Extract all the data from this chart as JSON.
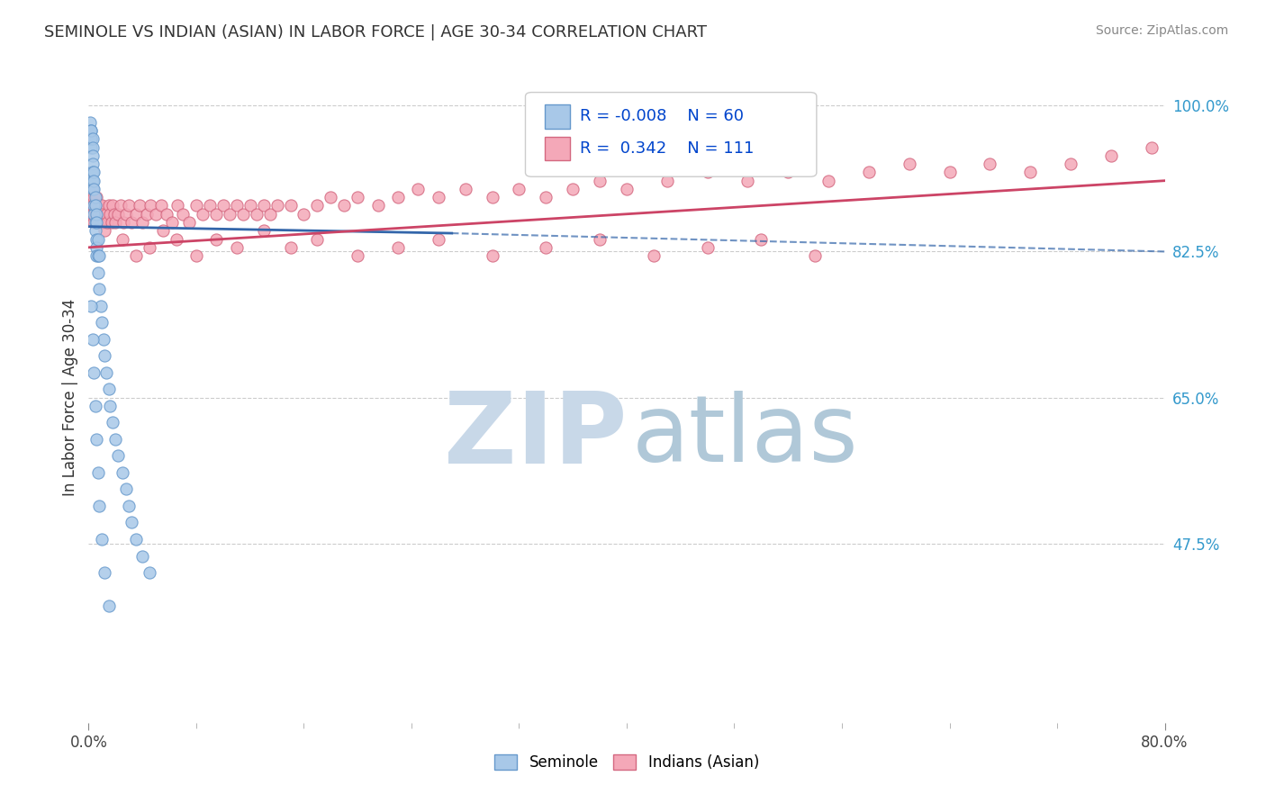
{
  "title": "SEMINOLE VS INDIAN (ASIAN) IN LABOR FORCE | AGE 30-34 CORRELATION CHART",
  "source": "Source: ZipAtlas.com",
  "ylabel": "In Labor Force | Age 30-34",
  "xlim": [
    0.0,
    0.8
  ],
  "ylim": [
    0.26,
    1.04
  ],
  "xticks": [
    0.0,
    0.8
  ],
  "xticklabels": [
    "0.0%",
    "80.0%"
  ],
  "ytick_right_values": [
    1.0,
    0.825,
    0.65,
    0.475
  ],
  "ytick_right_labels": [
    "100.0%",
    "82.5%",
    "65.0%",
    "47.5%"
  ],
  "r_seminole": "-0.008",
  "n_seminole": "60",
  "r_indian": "0.342",
  "n_indian": "111",
  "blue_color": "#a8c8e8",
  "pink_color": "#f4a8b8",
  "blue_edge_color": "#6699cc",
  "pink_edge_color": "#d46880",
  "blue_line_color": "#3366aa",
  "pink_line_color": "#cc4466",
  "watermark_zip_color": "#c8d8e8",
  "watermark_atlas_color": "#b0c8d8",
  "background_color": "#ffffff",
  "title_fontsize": 13,
  "seminole_x": [
    0.001,
    0.001,
    0.002,
    0.002,
    0.002,
    0.002,
    0.002,
    0.003,
    0.003,
    0.003,
    0.003,
    0.003,
    0.003,
    0.003,
    0.004,
    0.004,
    0.004,
    0.004,
    0.004,
    0.005,
    0.005,
    0.005,
    0.005,
    0.006,
    0.006,
    0.006,
    0.006,
    0.006,
    0.007,
    0.007,
    0.007,
    0.008,
    0.008,
    0.009,
    0.01,
    0.011,
    0.012,
    0.013,
    0.015,
    0.016,
    0.018,
    0.02,
    0.022,
    0.025,
    0.028,
    0.03,
    0.032,
    0.035,
    0.04,
    0.045,
    0.002,
    0.003,
    0.004,
    0.005,
    0.006,
    0.007,
    0.008,
    0.01,
    0.012,
    0.015
  ],
  "seminole_y": [
    0.97,
    0.98,
    0.97,
    0.96,
    0.95,
    0.96,
    0.97,
    0.96,
    0.95,
    0.94,
    0.93,
    0.92,
    0.91,
    0.9,
    0.92,
    0.91,
    0.9,
    0.88,
    0.87,
    0.89,
    0.88,
    0.86,
    0.85,
    0.87,
    0.86,
    0.84,
    0.83,
    0.82,
    0.84,
    0.82,
    0.8,
    0.82,
    0.78,
    0.76,
    0.74,
    0.72,
    0.7,
    0.68,
    0.66,
    0.64,
    0.62,
    0.6,
    0.58,
    0.56,
    0.54,
    0.52,
    0.5,
    0.48,
    0.46,
    0.44,
    0.76,
    0.72,
    0.68,
    0.64,
    0.6,
    0.56,
    0.52,
    0.48,
    0.44,
    0.4
  ],
  "indian_x": [
    0.001,
    0.002,
    0.002,
    0.003,
    0.003,
    0.003,
    0.004,
    0.004,
    0.005,
    0.005,
    0.006,
    0.006,
    0.007,
    0.007,
    0.008,
    0.008,
    0.009,
    0.01,
    0.01,
    0.011,
    0.012,
    0.013,
    0.014,
    0.015,
    0.016,
    0.017,
    0.018,
    0.019,
    0.02,
    0.022,
    0.024,
    0.026,
    0.028,
    0.03,
    0.032,
    0.035,
    0.038,
    0.04,
    0.043,
    0.046,
    0.05,
    0.054,
    0.058,
    0.062,
    0.066,
    0.07,
    0.075,
    0.08,
    0.085,
    0.09,
    0.095,
    0.1,
    0.105,
    0.11,
    0.115,
    0.12,
    0.125,
    0.13,
    0.135,
    0.14,
    0.15,
    0.16,
    0.17,
    0.18,
    0.19,
    0.2,
    0.215,
    0.23,
    0.245,
    0.26,
    0.28,
    0.3,
    0.32,
    0.34,
    0.36,
    0.38,
    0.4,
    0.43,
    0.46,
    0.49,
    0.52,
    0.55,
    0.58,
    0.61,
    0.64,
    0.67,
    0.7,
    0.73,
    0.76,
    0.79,
    0.025,
    0.035,
    0.045,
    0.055,
    0.065,
    0.08,
    0.095,
    0.11,
    0.13,
    0.15,
    0.17,
    0.2,
    0.23,
    0.26,
    0.3,
    0.34,
    0.38,
    0.42,
    0.46,
    0.5,
    0.54
  ],
  "indian_y": [
    0.88,
    0.87,
    0.89,
    0.88,
    0.9,
    0.87,
    0.89,
    0.86,
    0.88,
    0.87,
    0.89,
    0.88,
    0.87,
    0.86,
    0.88,
    0.87,
    0.86,
    0.88,
    0.87,
    0.86,
    0.85,
    0.87,
    0.86,
    0.88,
    0.87,
    0.86,
    0.88,
    0.87,
    0.86,
    0.87,
    0.88,
    0.86,
    0.87,
    0.88,
    0.86,
    0.87,
    0.88,
    0.86,
    0.87,
    0.88,
    0.87,
    0.88,
    0.87,
    0.86,
    0.88,
    0.87,
    0.86,
    0.88,
    0.87,
    0.88,
    0.87,
    0.88,
    0.87,
    0.88,
    0.87,
    0.88,
    0.87,
    0.88,
    0.87,
    0.88,
    0.88,
    0.87,
    0.88,
    0.89,
    0.88,
    0.89,
    0.88,
    0.89,
    0.9,
    0.89,
    0.9,
    0.89,
    0.9,
    0.89,
    0.9,
    0.91,
    0.9,
    0.91,
    0.92,
    0.91,
    0.92,
    0.91,
    0.92,
    0.93,
    0.92,
    0.93,
    0.92,
    0.93,
    0.94,
    0.95,
    0.84,
    0.82,
    0.83,
    0.85,
    0.84,
    0.82,
    0.84,
    0.83,
    0.85,
    0.83,
    0.84,
    0.82,
    0.83,
    0.84,
    0.82,
    0.83,
    0.84,
    0.82,
    0.83,
    0.84,
    0.82
  ]
}
